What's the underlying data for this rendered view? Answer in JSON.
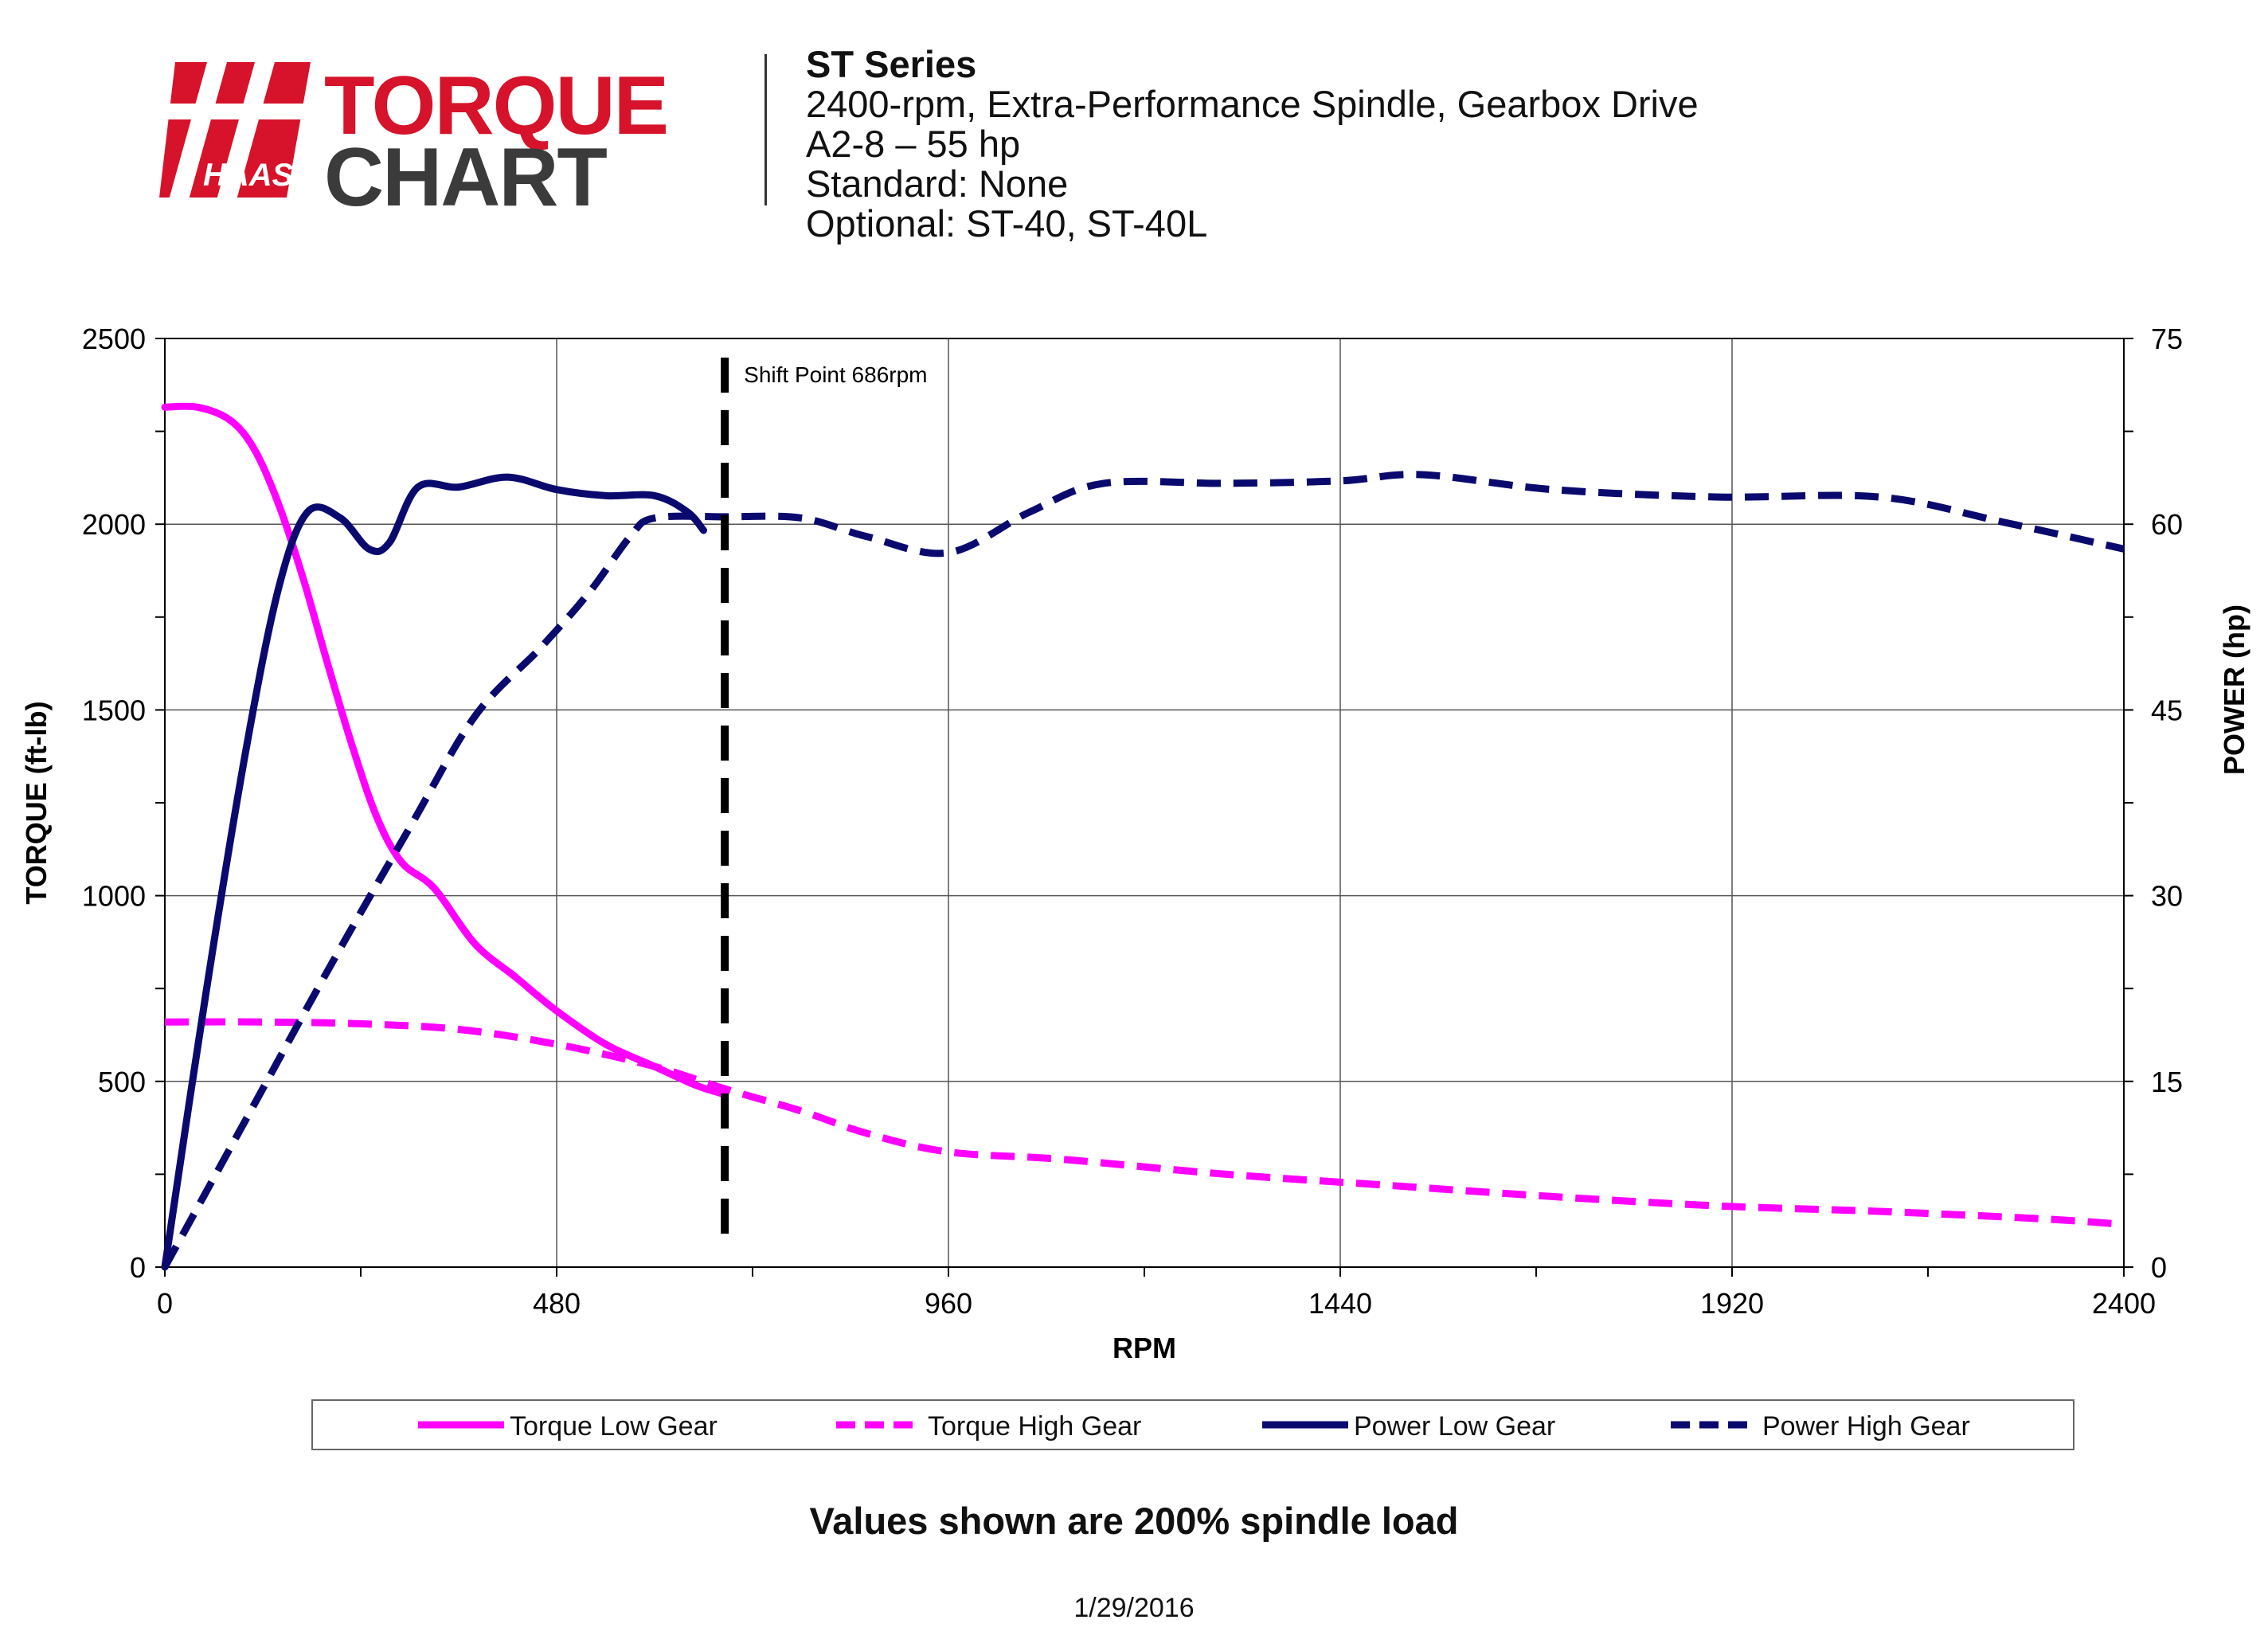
{
  "logo": {
    "brand": "HAAS",
    "line1": "TORQUE",
    "line2": "CHART"
  },
  "header": {
    "title": "ST Series",
    "lines": [
      "2400-rpm, Extra-Performance Spindle, Gearbox Drive",
      "A2-8 – 55 hp",
      "Standard: None",
      "Optional: ST-40, ST-40L"
    ]
  },
  "footnote": "Values shown are 200% spindle load",
  "date": "1/29/2016",
  "colors": {
    "torque": "#ff00ff",
    "power": "#0a0a6e",
    "shift": "#000000"
  },
  "chart_data": {
    "type": "line",
    "xlabel": "RPM",
    "ylabel": "TORQUE (ft-lb)",
    "y2label": "POWER (hp)",
    "xlim": [
      0,
      2400
    ],
    "ylim": [
      0,
      2500
    ],
    "y2lim": [
      0,
      75
    ],
    "xticks": [
      0,
      480,
      960,
      1440,
      1920,
      2400
    ],
    "yticks": [
      0,
      500,
      1000,
      1500,
      2000,
      2500
    ],
    "y2ticks": [
      0,
      15,
      30,
      45,
      60,
      75
    ],
    "grid": true,
    "annotation": {
      "label": "Shift Point 686rpm",
      "x": 686
    },
    "legend_position": "bottom",
    "series": [
      {
        "name": "Torque Low Gear",
        "axis": "left",
        "style": "solid",
        "color": "#ff00ff",
        "points": [
          [
            0,
            2315
          ],
          [
            40,
            2315
          ],
          [
            80,
            2280
          ],
          [
            110,
            2200
          ],
          [
            140,
            2050
          ],
          [
            170,
            1850
          ],
          [
            200,
            1620
          ],
          [
            230,
            1400
          ],
          [
            260,
            1210
          ],
          [
            290,
            1090
          ],
          [
            330,
            1020
          ],
          [
            380,
            870
          ],
          [
            430,
            780
          ],
          [
            480,
            690
          ],
          [
            540,
            600
          ],
          [
            600,
            540
          ],
          [
            650,
            490
          ],
          [
            686,
            465
          ]
        ]
      },
      {
        "name": "Torque High Gear",
        "axis": "left",
        "style": "dashed",
        "color": "#ff00ff",
        "points": [
          [
            0,
            660
          ],
          [
            120,
            660
          ],
          [
            240,
            655
          ],
          [
            360,
            640
          ],
          [
            480,
            600
          ],
          [
            600,
            540
          ],
          [
            686,
            480
          ],
          [
            780,
            420
          ],
          [
            860,
            360
          ],
          [
            960,
            310
          ],
          [
            1100,
            290
          ],
          [
            1300,
            250
          ],
          [
            1500,
            220
          ],
          [
            1700,
            190
          ],
          [
            1900,
            165
          ],
          [
            2100,
            150
          ],
          [
            2300,
            130
          ],
          [
            2400,
            115
          ]
        ]
      },
      {
        "name": "Power Low Gear",
        "axis": "right",
        "style": "solid",
        "color": "#0a0a6e",
        "points": [
          [
            0,
            0
          ],
          [
            50,
            22
          ],
          [
            100,
            42
          ],
          [
            140,
            55
          ],
          [
            175,
            61
          ],
          [
            215,
            60.5
          ],
          [
            250,
            58
          ],
          [
            275,
            58.5
          ],
          [
            310,
            63
          ],
          [
            360,
            63
          ],
          [
            420,
            63.8
          ],
          [
            480,
            62.8
          ],
          [
            540,
            62.3
          ],
          [
            600,
            62.3
          ],
          [
            640,
            61
          ],
          [
            660,
            59.5
          ]
        ]
      },
      {
        "name": "Power High Gear",
        "axis": "right",
        "style": "dashed",
        "color": "#0a0a6e",
        "points": [
          [
            0,
            0
          ],
          [
            100,
            12
          ],
          [
            200,
            24
          ],
          [
            300,
            35.5
          ],
          [
            380,
            44.5
          ],
          [
            460,
            50
          ],
          [
            520,
            54.5
          ],
          [
            570,
            59
          ],
          [
            600,
            60.5
          ],
          [
            686,
            60.6
          ],
          [
            780,
            60.5
          ],
          [
            860,
            59
          ],
          [
            960,
            57.7
          ],
          [
            1060,
            61
          ],
          [
            1150,
            63.3
          ],
          [
            1300,
            63.3
          ],
          [
            1440,
            63.5
          ],
          [
            1540,
            64
          ],
          [
            1700,
            62.8
          ],
          [
            1900,
            62.2
          ],
          [
            2100,
            62.2
          ],
          [
            2250,
            60.2
          ],
          [
            2400,
            58
          ]
        ]
      }
    ]
  }
}
